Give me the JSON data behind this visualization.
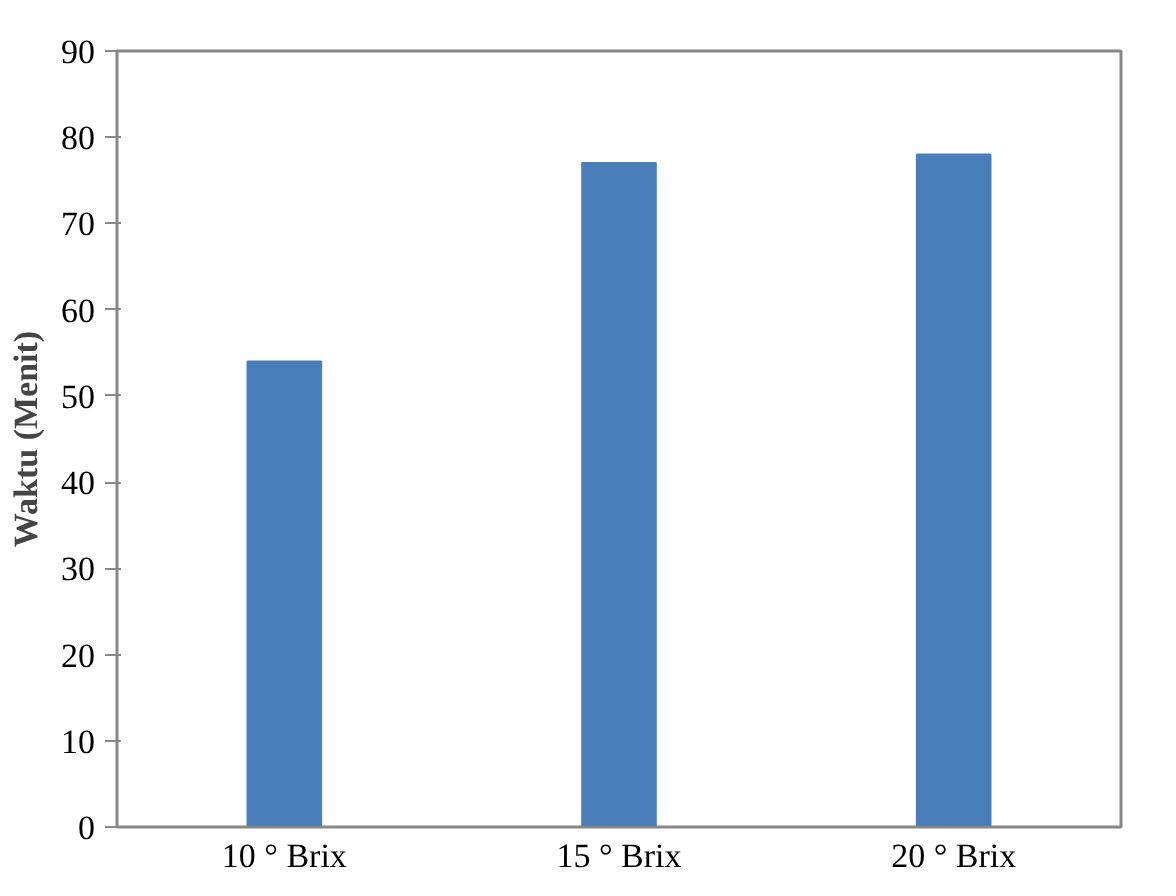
{
  "chart_data": {
    "type": "bar",
    "ylabel": "Waktu (Menit)",
    "categories": [
      "10 ° Brix",
      "15 ° Brix",
      "20 ° Brix"
    ],
    "values": [
      54,
      77,
      78
    ],
    "color": "#4a7ebb",
    "ylim": [
      0,
      90
    ],
    "yticks": [
      0,
      10,
      20,
      30,
      40,
      50,
      60,
      70,
      80,
      90
    ],
    "grid": false
  }
}
